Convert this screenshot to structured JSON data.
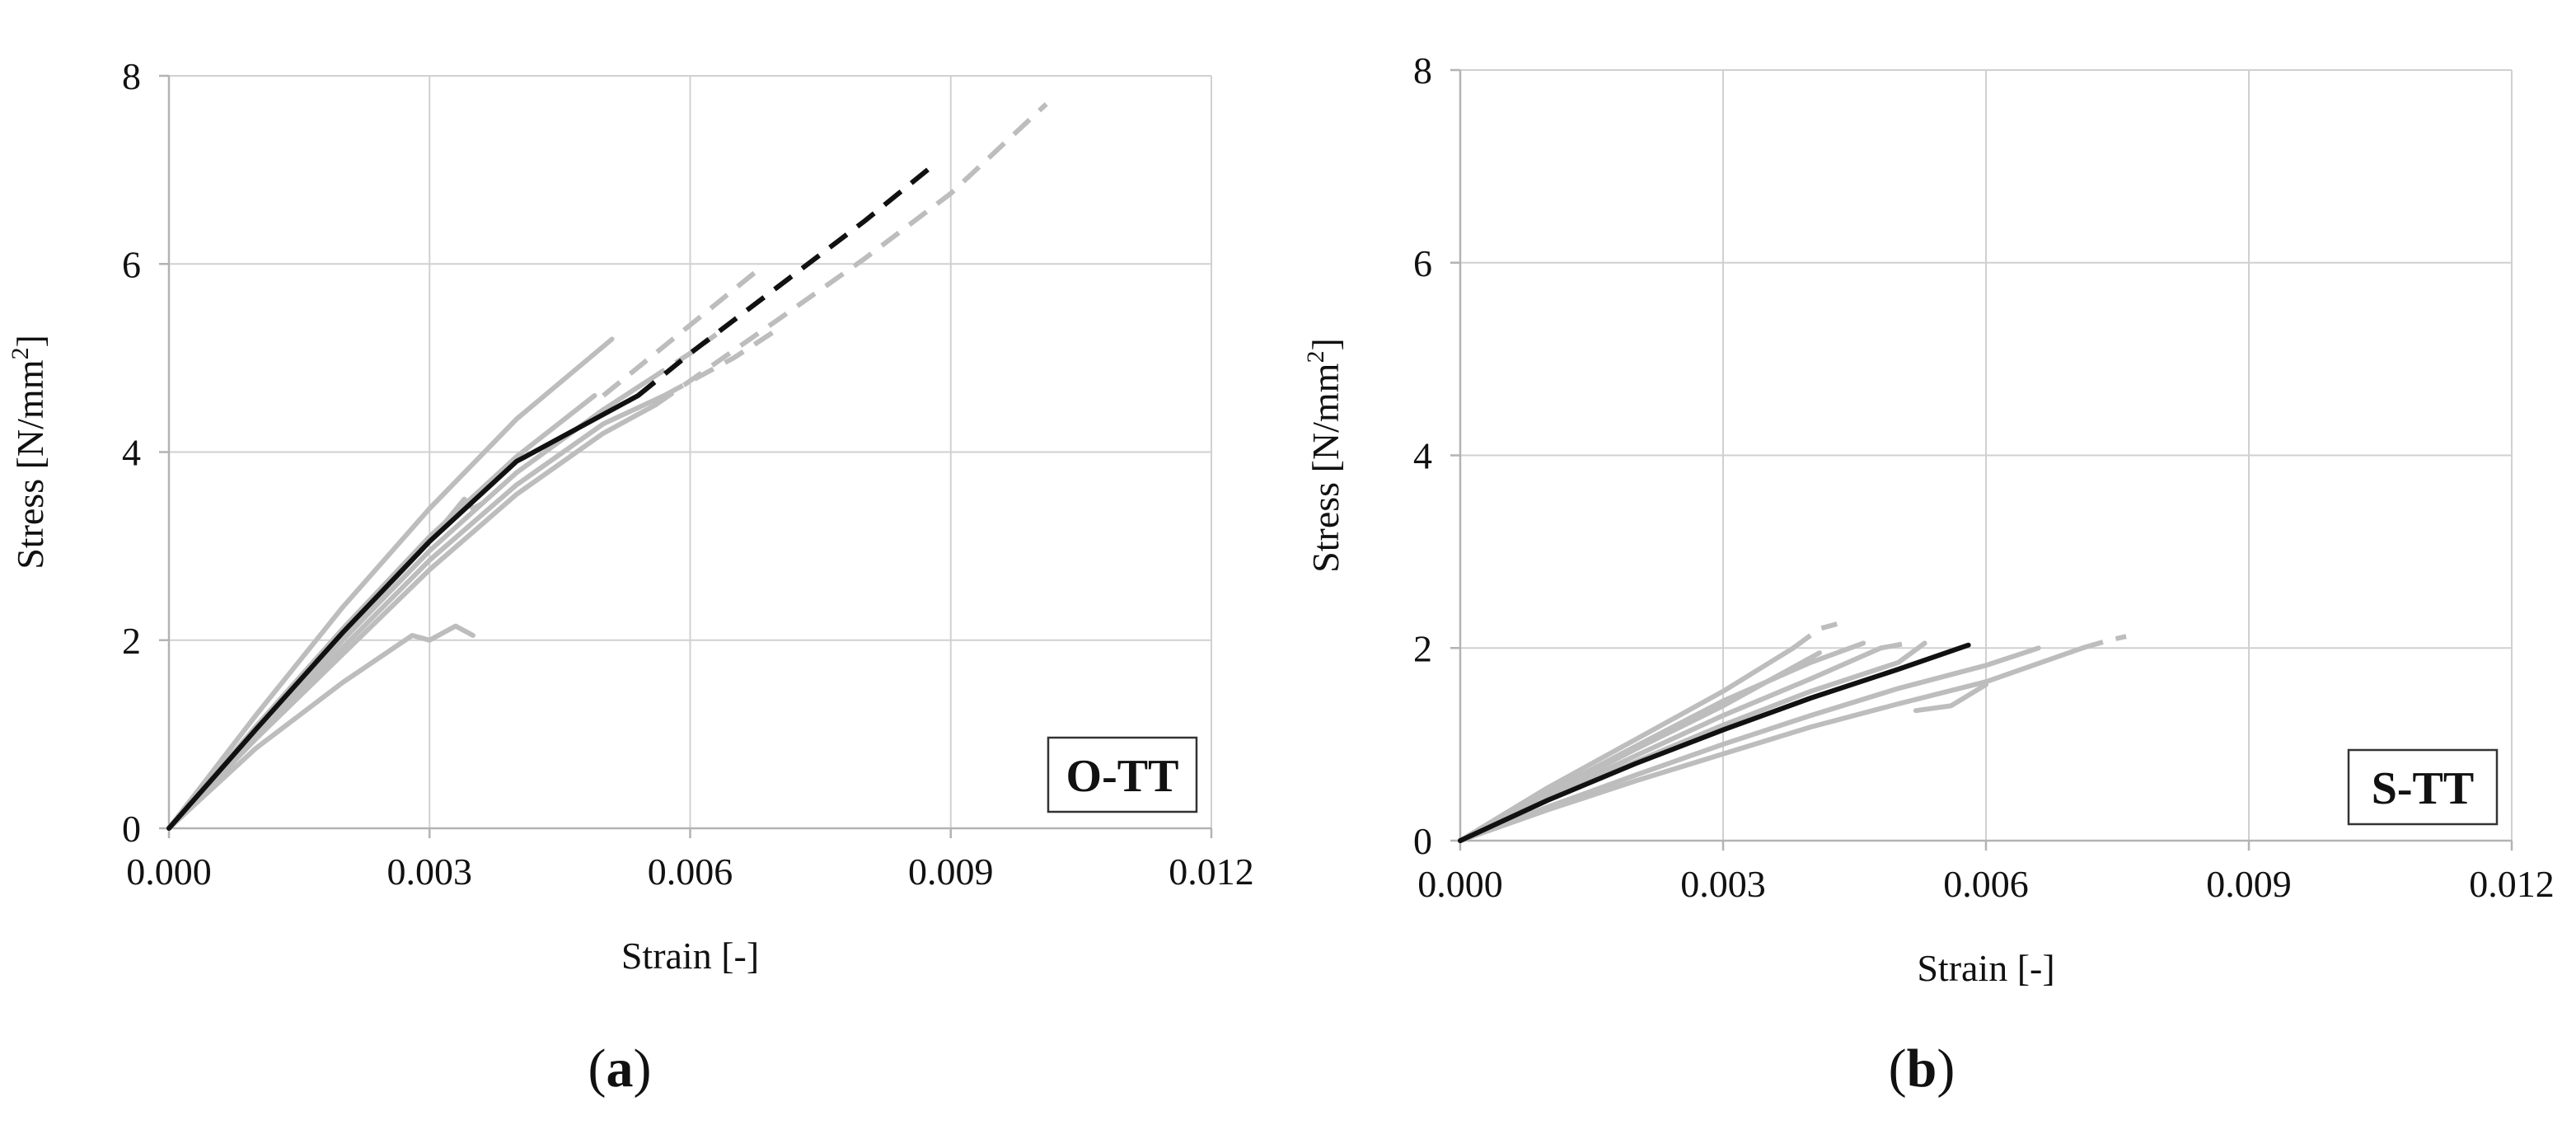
{
  "figure": {
    "captions": [
      {
        "open": "(",
        "letter": "a",
        "close": ")"
      },
      {
        "open": "(",
        "letter": "b",
        "close": ")"
      }
    ]
  },
  "colors": {
    "gray_curve": "#bdbdbd",
    "mean_curve": "#111111",
    "grid": "#d0d0d0",
    "axis": "#b3b3b3"
  },
  "chart_data": [
    {
      "type": "line",
      "panel": "(a)",
      "title": "",
      "tag": "O-TT",
      "xlabel": "Strain [-]",
      "ylabel_main": "Stress [N/mm",
      "ylabel_sup": "2",
      "ylabel_end": "]",
      "xlim": [
        0,
        0.012
      ],
      "ylim": [
        0,
        8
      ],
      "xticks": [
        0,
        0.003,
        0.006,
        0.009,
        0.012
      ],
      "xtick_labels": [
        "0.000",
        "0.003",
        "0.006",
        "0.009",
        "0.012"
      ],
      "yticks": [
        0,
        2,
        4,
        6,
        8
      ],
      "ytick_labels": [
        "0",
        "2",
        "4",
        "6",
        "8"
      ],
      "grid": true,
      "tag_position": "bottom-right",
      "series": [
        {
          "name": "specimen-1",
          "color": "gray",
          "style": "solid",
          "points": [
            [
              0,
              0
            ],
            [
              0.001,
              1.2
            ],
            [
              0.002,
              2.35
            ],
            [
              0.003,
              3.4
            ],
            [
              0.004,
              4.35
            ],
            [
              0.0051,
              5.2
            ]
          ]
        },
        {
          "name": "specimen-2",
          "color": "gray",
          "style": "solid",
          "points": [
            [
              0,
              0
            ],
            [
              0.001,
              1.08
            ],
            [
              0.002,
              2.12
            ],
            [
              0.003,
              3.1
            ],
            [
              0.004,
              3.95
            ],
            [
              0.0049,
              4.6
            ]
          ]
        },
        {
          "name": "specimen-3",
          "color": "gray",
          "style": "solid",
          "points": [
            [
              0,
              0
            ],
            [
              0.001,
              1.02
            ],
            [
              0.002,
              2.0
            ],
            [
              0.003,
              2.95
            ],
            [
              0.004,
              3.78
            ],
            [
              0.005,
              4.45
            ],
            [
              0.0055,
              4.75
            ]
          ]
        },
        {
          "name": "specimen-4",
          "color": "gray",
          "style": "solid",
          "points": [
            [
              0,
              0
            ],
            [
              0.001,
              0.97
            ],
            [
              0.002,
              1.92
            ],
            [
              0.003,
              2.85
            ],
            [
              0.004,
              3.65
            ],
            [
              0.005,
              4.3
            ],
            [
              0.0057,
              4.6
            ]
          ]
        },
        {
          "name": "specimen-5",
          "color": "gray",
          "style": "solid",
          "points": [
            [
              0,
              0
            ],
            [
              0.001,
              1.05
            ],
            [
              0.002,
              2.05
            ],
            [
              0.003,
              3.05
            ],
            [
              0.0034,
              3.5
            ],
            [
              0.0035,
              3.4
            ],
            [
              0.0036,
              3.45
            ]
          ]
        },
        {
          "name": "specimen-6",
          "color": "gray",
          "style": "solid",
          "points": [
            [
              0,
              0
            ],
            [
              0.001,
              0.85
            ],
            [
              0.002,
              1.55
            ],
            [
              0.0028,
              2.05
            ],
            [
              0.003,
              2.0
            ],
            [
              0.0033,
              2.15
            ],
            [
              0.0035,
              2.05
            ]
          ]
        },
        {
          "name": "specimen-7",
          "color": "gray",
          "style": "solid",
          "points": [
            [
              0,
              0
            ],
            [
              0.001,
              0.95
            ],
            [
              0.002,
              1.85
            ],
            [
              0.003,
              2.75
            ],
            [
              0.004,
              3.55
            ],
            [
              0.005,
              4.2
            ],
            [
              0.0056,
              4.5
            ]
          ]
        },
        {
          "name": "specimen-8-dashed-upper",
          "color": "gray",
          "style": "dashed",
          "points": [
            [
              0.005,
              4.6
            ],
            [
              0.006,
              5.35
            ],
            [
              0.0068,
              5.95
            ]
          ]
        },
        {
          "name": "specimen-9-dashed",
          "color": "gray",
          "style": "dashed",
          "points": [
            [
              0.0055,
              4.75
            ],
            [
              0.006,
              5.05
            ],
            [
              0.0063,
              5.25
            ]
          ]
        },
        {
          "name": "specimen-10-dashed-long",
          "color": "gray",
          "style": "dashed",
          "points": [
            [
              0.0056,
              4.5
            ],
            [
              0.007,
              5.4
            ],
            [
              0.008,
              6.05
            ],
            [
              0.009,
              6.75
            ],
            [
              0.0101,
              7.7
            ]
          ]
        },
        {
          "name": "specimen-11-dashed",
          "color": "gray",
          "style": "dashed",
          "points": [
            [
              0.0057,
              4.6
            ],
            [
              0.0065,
              5.0
            ],
            [
              0.007,
              5.3
            ]
          ]
        },
        {
          "name": "mean",
          "color": "black",
          "style": "solid",
          "points": [
            [
              0,
              0
            ],
            [
              0.001,
              1.05
            ],
            [
              0.002,
              2.08
            ],
            [
              0.003,
              3.05
            ],
            [
              0.004,
              3.9
            ],
            [
              0.0054,
              4.6
            ]
          ]
        },
        {
          "name": "mean-extrapolated",
          "color": "black",
          "style": "dashed",
          "points": [
            [
              0.0054,
              4.6
            ],
            [
              0.006,
              5.05
            ],
            [
              0.007,
              5.75
            ],
            [
              0.008,
              6.45
            ],
            [
              0.0088,
              7.05
            ]
          ]
        }
      ]
    },
    {
      "type": "line",
      "panel": "(b)",
      "title": "",
      "tag": "S-TT",
      "xlabel": "Strain [-]",
      "ylabel_main": "Stress [N/mm",
      "ylabel_sup": "2",
      "ylabel_end": "]",
      "xlim": [
        0,
        0.012
      ],
      "ylim": [
        0,
        8
      ],
      "xticks": [
        0,
        0.003,
        0.006,
        0.009,
        0.012
      ],
      "xtick_labels": [
        "0.000",
        "0.003",
        "0.006",
        "0.009",
        "0.012"
      ],
      "yticks": [
        0,
        2,
        4,
        6,
        8
      ],
      "ytick_labels": [
        "0",
        "2",
        "4",
        "6",
        "8"
      ],
      "grid": true,
      "tag_position": "bottom-right",
      "series": [
        {
          "name": "specimen-1",
          "color": "gray",
          "style": "solid",
          "points": [
            [
              0,
              0
            ],
            [
              0.001,
              0.55
            ],
            [
              0.002,
              1.05
            ],
            [
              0.003,
              1.55
            ],
            [
              0.0038,
              2.0
            ]
          ]
        },
        {
          "name": "specimen-2",
          "color": "gray",
          "style": "solid",
          "points": [
            [
              0,
              0
            ],
            [
              0.001,
              0.5
            ],
            [
              0.002,
              0.98
            ],
            [
              0.003,
              1.45
            ],
            [
              0.004,
              1.85
            ],
            [
              0.0046,
              2.05
            ]
          ]
        },
        {
          "name": "specimen-3",
          "color": "gray",
          "style": "solid",
          "points": [
            [
              0,
              0
            ],
            [
              0.001,
              0.45
            ],
            [
              0.002,
              0.88
            ],
            [
              0.003,
              1.3
            ],
            [
              0.004,
              1.68
            ],
            [
              0.0048,
              2.0
            ]
          ]
        },
        {
          "name": "specimen-4",
          "color": "gray",
          "style": "solid",
          "points": [
            [
              0,
              0
            ],
            [
              0.001,
              0.42
            ],
            [
              0.002,
              0.82
            ],
            [
              0.003,
              1.2
            ],
            [
              0.004,
              1.55
            ],
            [
              0.005,
              1.85
            ],
            [
              0.0053,
              2.05
            ]
          ]
        },
        {
          "name": "specimen-5",
          "color": "gray",
          "style": "solid",
          "points": [
            [
              0,
              0
            ],
            [
              0.001,
              0.35
            ],
            [
              0.002,
              0.68
            ],
            [
              0.003,
              1.0
            ],
            [
              0.004,
              1.3
            ],
            [
              0.005,
              1.58
            ],
            [
              0.006,
              1.82
            ],
            [
              0.0066,
              2.0
            ]
          ]
        },
        {
          "name": "specimen-6",
          "color": "gray",
          "style": "solid",
          "points": [
            [
              0,
              0
            ],
            [
              0.001,
              0.32
            ],
            [
              0.002,
              0.62
            ],
            [
              0.003,
              0.9
            ],
            [
              0.004,
              1.18
            ],
            [
              0.005,
              1.42
            ],
            [
              0.006,
              1.65
            ],
            [
              0.0071,
              2.0
            ]
          ]
        },
        {
          "name": "specimen-7",
          "color": "gray",
          "style": "solid",
          "points": [
            [
              0.0052,
              1.35
            ],
            [
              0.0056,
              1.4
            ],
            [
              0.006,
              1.62
            ]
          ]
        },
        {
          "name": "specimen-8",
          "color": "gray",
          "style": "solid",
          "points": [
            [
              0,
              0
            ],
            [
              0.001,
              0.48
            ],
            [
              0.002,
              0.95
            ],
            [
              0.003,
              1.4
            ],
            [
              0.0041,
              1.95
            ]
          ]
        },
        {
          "name": "specimen-9-dashed",
          "color": "gray",
          "style": "dashed",
          "points": [
            [
              0.0038,
              2.0
            ],
            [
              0.0041,
              2.2
            ],
            [
              0.0043,
              2.25
            ]
          ]
        },
        {
          "name": "specimen-10-dashed",
          "color": "gray",
          "style": "dashed",
          "points": [
            [
              0.0071,
              2.0
            ],
            [
              0.0074,
              2.08
            ],
            [
              0.0076,
              2.12
            ]
          ]
        },
        {
          "name": "specimen-11-dashed",
          "color": "gray",
          "style": "dashed",
          "points": [
            [
              0.0048,
              2.0
            ],
            [
              0.0051,
              2.05
            ]
          ]
        },
        {
          "name": "mean",
          "color": "black",
          "style": "solid",
          "points": [
            [
              0,
              0
            ],
            [
              0.001,
              0.42
            ],
            [
              0.002,
              0.8
            ],
            [
              0.003,
              1.15
            ],
            [
              0.004,
              1.48
            ],
            [
              0.005,
              1.78
            ],
            [
              0.0058,
              2.03
            ]
          ]
        }
      ]
    }
  ]
}
